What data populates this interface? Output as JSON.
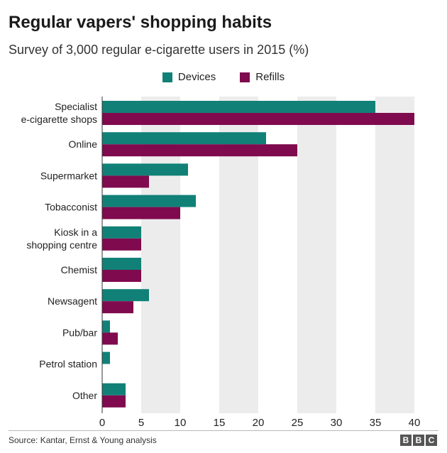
{
  "title": "Regular vapers' shopping habits",
  "subtitle": "Survey of 3,000 regular e-cigarette users in 2015 (%)",
  "source": "Source: Kantar, Ernst & Young analysis",
  "logo": [
    "B",
    "B",
    "C"
  ],
  "colors": {
    "devices": "#118177",
    "refills": "#7f0a4e",
    "band": "#ececec"
  },
  "chart_data": {
    "type": "bar",
    "orientation": "horizontal",
    "categories": [
      [
        "Specialist",
        "e-cigarette shops"
      ],
      [
        "Online"
      ],
      [
        "Supermarket"
      ],
      [
        "Tobacconist"
      ],
      [
        "Kiosk in a",
        "shopping centre"
      ],
      [
        "Chemist"
      ],
      [
        "Newsagent"
      ],
      [
        "Pub/bar"
      ],
      [
        "Petrol station"
      ],
      [
        "Other"
      ]
    ],
    "series": [
      {
        "name": "Devices",
        "values": [
          35,
          21,
          11,
          12,
          5,
          5,
          6,
          1,
          1,
          3
        ]
      },
      {
        "name": "Refills",
        "values": [
          40,
          25,
          6,
          10,
          5,
          5,
          4,
          2,
          0,
          3
        ]
      }
    ],
    "xlim": [
      0,
      40
    ],
    "xticks": [
      0,
      5,
      10,
      15,
      20,
      25,
      30,
      35,
      40
    ],
    "grid": "alternating vertical bands",
    "legend": "top-center"
  }
}
